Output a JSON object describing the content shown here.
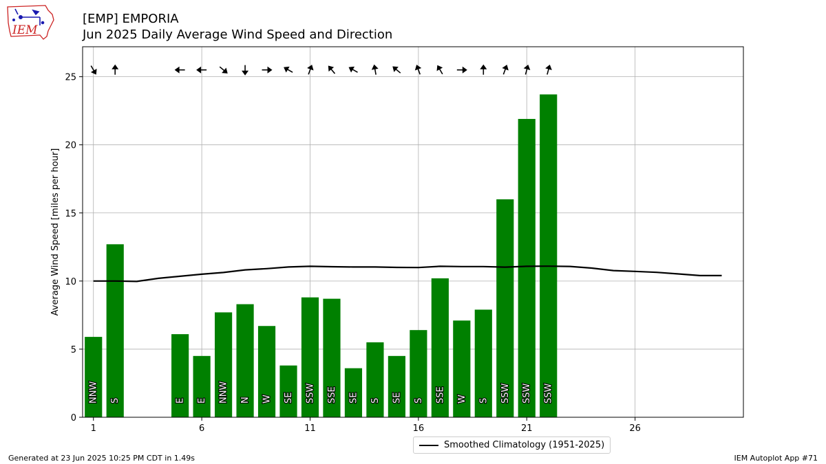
{
  "header": {
    "title_line1": "[EMP] EMPORIA",
    "title_line2": "Jun 2025 Daily Average Wind Speed and Direction"
  },
  "logo": {
    "text": "IEM",
    "icon": "iowa-state-outline-icon"
  },
  "footer": {
    "left": "Generated at 23 Jun 2025 10:25 PM CDT in 1.49s",
    "right": "IEM Autoplot App #71"
  },
  "colors": {
    "bar": "#008000",
    "climo_line": "#000000",
    "grid": "#b0b0b0",
    "logo_red": "#cc2222",
    "logo_blue": "#1a1ab0"
  },
  "chart_data": {
    "type": "bar",
    "title": "Jun 2025 Daily Average Wind Speed and Direction",
    "xlabel": "",
    "ylabel": "Average Wind Speed [miles per hour]",
    "xlim": [
      0.5,
      31
    ],
    "ylim": [
      0,
      27.2
    ],
    "xticks": [
      1,
      6,
      11,
      16,
      21,
      26
    ],
    "yticks": [
      0,
      5,
      10,
      15,
      20,
      25
    ],
    "grid": true,
    "legend_position": "bottom-center-outside",
    "bars": [
      {
        "day": 1,
        "speed": 5.9,
        "dir": "NNW",
        "arrow_deg": 150
      },
      {
        "day": 2,
        "speed": 12.7,
        "dir": "S",
        "arrow_deg": 0
      },
      {
        "day": 5,
        "speed": 6.1,
        "dir": "E",
        "arrow_deg": 270
      },
      {
        "day": 6,
        "speed": 4.5,
        "dir": "E",
        "arrow_deg": 270
      },
      {
        "day": 7,
        "speed": 7.7,
        "dir": "NNW",
        "arrow_deg": 130
      },
      {
        "day": 8,
        "speed": 8.3,
        "dir": "N",
        "arrow_deg": 180
      },
      {
        "day": 9,
        "speed": 6.7,
        "dir": "W",
        "arrow_deg": 90
      },
      {
        "day": 10,
        "speed": 3.8,
        "dir": "SE",
        "arrow_deg": 300
      },
      {
        "day": 11,
        "speed": 8.8,
        "dir": "SSW",
        "arrow_deg": 20
      },
      {
        "day": 12,
        "speed": 8.7,
        "dir": "SSE",
        "arrow_deg": 320
      },
      {
        "day": 13,
        "speed": 3.6,
        "dir": "SE",
        "arrow_deg": 300
      },
      {
        "day": 14,
        "speed": 5.5,
        "dir": "S",
        "arrow_deg": 350
      },
      {
        "day": 15,
        "speed": 4.5,
        "dir": "SE",
        "arrow_deg": 310
      },
      {
        "day": 16,
        "speed": 6.4,
        "dir": "S",
        "arrow_deg": 340
      },
      {
        "day": 17,
        "speed": 10.2,
        "dir": "SSE",
        "arrow_deg": 330
      },
      {
        "day": 18,
        "speed": 7.1,
        "dir": "W",
        "arrow_deg": 90
      },
      {
        "day": 19,
        "speed": 7.9,
        "dir": "S",
        "arrow_deg": 0
      },
      {
        "day": 20,
        "speed": 16.0,
        "dir": "SSW",
        "arrow_deg": 20
      },
      {
        "day": 21,
        "speed": 21.9,
        "dir": "SSW",
        "arrow_deg": 15
      },
      {
        "day": 22,
        "speed": 23.7,
        "dir": "SSW",
        "arrow_deg": 15
      }
    ],
    "series": [
      {
        "name": "Smoothed Climatology (1951-2025)",
        "x": [
          1,
          2,
          3,
          4,
          5,
          6,
          7,
          8,
          9,
          10,
          11,
          12,
          13,
          14,
          15,
          16,
          17,
          18,
          19,
          20,
          21,
          22,
          23,
          24,
          25,
          26,
          27,
          28,
          29,
          30
        ],
        "values": [
          10.0,
          10.0,
          9.97,
          10.2,
          10.35,
          10.5,
          10.63,
          10.82,
          10.91,
          11.03,
          11.08,
          11.05,
          11.03,
          11.03,
          11.0,
          10.99,
          11.08,
          11.06,
          11.06,
          11.02,
          11.08,
          11.09,
          11.07,
          10.95,
          10.77,
          10.71,
          10.64,
          10.52,
          10.4,
          10.4
        ]
      }
    ]
  }
}
